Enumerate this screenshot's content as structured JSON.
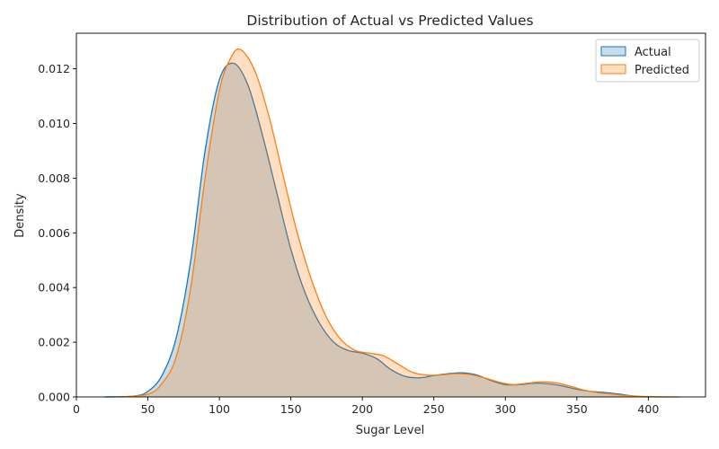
{
  "chart_data": {
    "type": "area",
    "title": "Distribution of Actual vs Predicted Values",
    "xlabel": "Sugar Level",
    "ylabel": "Density",
    "xlim": [
      0,
      440
    ],
    "ylim": [
      0,
      0.0133
    ],
    "xticks": [
      0,
      50,
      100,
      150,
      200,
      250,
      300,
      350,
      400
    ],
    "yticks": [
      0.0,
      0.002,
      0.004,
      0.006,
      0.008,
      0.01,
      0.012
    ],
    "ytick_labels": [
      "0.000",
      "0.002",
      "0.004",
      "0.006",
      "0.008",
      "0.010",
      "0.012"
    ],
    "grid": false,
    "legend_position": "top-right",
    "series": [
      {
        "name": "Actual",
        "color": "#1f77b4",
        "x": [
          20,
          40,
          50,
          60,
          70,
          80,
          90,
          100,
          110,
          120,
          130,
          140,
          150,
          160,
          170,
          180,
          190,
          200,
          210,
          220,
          230,
          240,
          250,
          260,
          270,
          280,
          290,
          300,
          310,
          320,
          330,
          340,
          350,
          360,
          370,
          380,
          390,
          400
        ],
        "y": [
          0.0,
          3e-05,
          0.0002,
          0.0008,
          0.0022,
          0.005,
          0.009,
          0.0116,
          0.0122,
          0.0114,
          0.0096,
          0.0075,
          0.0054,
          0.0038,
          0.0027,
          0.002,
          0.0017,
          0.0016,
          0.0014,
          0.001,
          0.00075,
          0.0007,
          0.00078,
          0.00085,
          0.00088,
          0.0008,
          0.0006,
          0.00045,
          0.00045,
          0.0005,
          0.00048,
          0.0004,
          0.00028,
          0.0002,
          0.00016,
          0.0001,
          3e-05,
          0.0
        ]
      },
      {
        "name": "Predicted",
        "color": "#ff7f0e",
        "x": [
          30,
          50,
          60,
          70,
          80,
          90,
          100,
          108,
          115,
          125,
          135,
          145,
          155,
          165,
          175,
          185,
          195,
          205,
          215,
          225,
          235,
          245,
          255,
          265,
          275,
          285,
          295,
          305,
          315,
          325,
          335,
          345,
          355,
          365,
          375,
          385,
          400,
          422
        ],
        "y": [
          0.0,
          0.0001,
          0.0005,
          0.0015,
          0.004,
          0.008,
          0.0112,
          0.0124,
          0.0127,
          0.0119,
          0.0102,
          0.008,
          0.0059,
          0.0042,
          0.0029,
          0.0021,
          0.0017,
          0.0016,
          0.0015,
          0.0012,
          0.0009,
          0.0008,
          0.0008,
          0.00085,
          0.00082,
          0.0007,
          0.00055,
          0.00045,
          0.0005,
          0.00055,
          0.00052,
          0.0004,
          0.00025,
          0.00015,
          0.0001,
          5e-05,
          1e-05,
          0.0
        ]
      }
    ]
  }
}
